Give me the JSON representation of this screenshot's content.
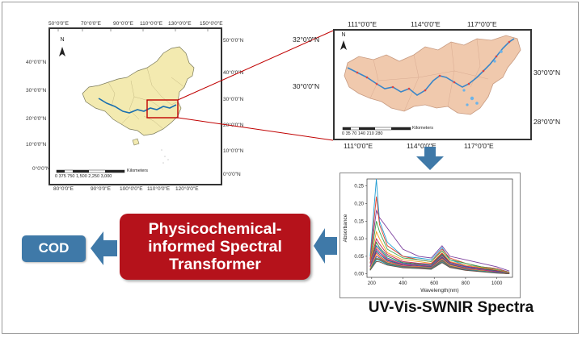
{
  "china_map": {
    "top_ticks": [
      "50°0'0\"E",
      "70°0'0\"E",
      "90°0'0\"E",
      "110°0'0\"E",
      "130°0'0\"E",
      "150°0'0\"E"
    ],
    "bottom_ticks": [
      "80°0'0\"E",
      "90°0'0\"E",
      "100°0'0\"E",
      "110°0'0\"E",
      "120°0'0\"E"
    ],
    "left_ticks": [
      "40°0'0\"N",
      "30°0'0\"N",
      "20°0'0\"N",
      "10°0'0\"N",
      "0°0'0\"N"
    ],
    "right_ticks": [
      "50°0'0\"N",
      "40°0'0\"N",
      "30°0'0\"N",
      "20°0'0\"N",
      "10°0'0\"N",
      "0°0'0\"N"
    ],
    "north": "N",
    "scale_numbers": "0  375 750     1,500    2,250    3,000",
    "scale_unit": "Kilometers"
  },
  "basin_map": {
    "top_ticks": [
      "111°0'0\"E",
      "114°0'0\"E",
      "117°0'0\"E"
    ],
    "bottom_ticks": [
      "111°0'0\"E",
      "114°0'0\"E",
      "117°0'0\"E"
    ],
    "left_ticks": [
      "32°0'0\"N",
      "30°0'0\"N"
    ],
    "right_ticks": [
      "30°0'0\"N",
      "28°0'0\"N"
    ],
    "north": "N",
    "scale_numbers": "0  35  70     140    210    280",
    "scale_unit": "Kilometers"
  },
  "model_box": {
    "line1": "Physicochemical-",
    "line2": "informed Spectral",
    "line3": "Transformer",
    "color": "#b5121b"
  },
  "output_box": {
    "label": "COD",
    "color": "#3f79a8"
  },
  "spectra_caption": "UV-Vis-SWNIR Spectra",
  "chart_data": {
    "type": "line",
    "xlabel": "Wavelength(nm)",
    "ylabel": "Absorbance",
    "xlim": [
      170,
      1100
    ],
    "ylim": [
      -0.01,
      0.27
    ],
    "xticks": [
      200,
      400,
      600,
      800,
      1000
    ],
    "yticks": [
      0.0,
      0.05,
      0.1,
      0.15,
      0.2,
      0.25
    ],
    "colors": [
      "#1f9bd1",
      "#7b3f9e",
      "#e0402a",
      "#3aa34a",
      "#f0a020",
      "#c2185b",
      "#2e7d32",
      "#1565c0",
      "#ff7043",
      "#8e24aa",
      "#00897b",
      "#d81b60",
      "#fbc02d",
      "#5e35b1",
      "#43a047",
      "#e53935",
      "#00acc1",
      "#6d4c41"
    ],
    "series": [
      {
        "x": [
          190,
          230,
          250,
          300,
          400,
          500,
          580,
          650,
          700,
          800,
          900,
          1000,
          1080
        ],
        "y": [
          0.05,
          0.27,
          0.15,
          0.09,
          0.05,
          0.045,
          0.04,
          0.075,
          0.04,
          0.025,
          0.02,
          0.015,
          0.005
        ]
      },
      {
        "x": [
          190,
          230,
          250,
          300,
          400,
          500,
          580,
          650,
          700,
          800,
          900,
          1000,
          1080
        ],
        "y": [
          0.04,
          0.18,
          0.16,
          0.13,
          0.07,
          0.05,
          0.045,
          0.08,
          0.05,
          0.04,
          0.03,
          0.02,
          0.008
        ]
      },
      {
        "x": [
          190,
          230,
          250,
          300,
          400,
          500,
          580,
          650,
          700,
          800,
          900,
          1000,
          1080
        ],
        "y": [
          0.04,
          0.22,
          0.14,
          0.08,
          0.05,
          0.04,
          0.035,
          0.07,
          0.045,
          0.03,
          0.02,
          0.015,
          0.004
        ]
      },
      {
        "x": [
          190,
          230,
          250,
          300,
          400,
          500,
          580,
          650,
          700,
          800,
          900,
          1000,
          1080
        ],
        "y": [
          0.03,
          0.15,
          0.12,
          0.07,
          0.045,
          0.04,
          0.035,
          0.065,
          0.04,
          0.03,
          0.02,
          0.012,
          0.003
        ]
      },
      {
        "x": [
          190,
          230,
          250,
          300,
          400,
          500,
          580,
          650,
          700,
          800,
          900,
          1000,
          1080
        ],
        "y": [
          0.03,
          0.12,
          0.1,
          0.06,
          0.04,
          0.035,
          0.03,
          0.06,
          0.035,
          0.025,
          0.018,
          0.01,
          0.003
        ]
      },
      {
        "x": [
          190,
          230,
          250,
          300,
          400,
          500,
          580,
          650,
          700,
          800,
          900,
          1000,
          1080
        ],
        "y": [
          0.03,
          0.1,
          0.085,
          0.055,
          0.035,
          0.03,
          0.028,
          0.058,
          0.033,
          0.022,
          0.016,
          0.009,
          0.002
        ]
      },
      {
        "x": [
          190,
          230,
          250,
          300,
          400,
          500,
          580,
          650,
          700,
          800,
          900,
          1000,
          1080
        ],
        "y": [
          0.02,
          0.09,
          0.075,
          0.05,
          0.032,
          0.028,
          0.025,
          0.055,
          0.03,
          0.02,
          0.014,
          0.008,
          0.002
        ]
      },
      {
        "x": [
          190,
          230,
          250,
          300,
          400,
          500,
          580,
          650,
          700,
          800,
          900,
          1000,
          1080
        ],
        "y": [
          0.02,
          0.08,
          0.07,
          0.045,
          0.03,
          0.026,
          0.024,
          0.052,
          0.03,
          0.02,
          0.013,
          0.007,
          0.002
        ]
      },
      {
        "x": [
          190,
          230,
          250,
          300,
          400,
          500,
          580,
          650,
          700,
          800,
          900,
          1000,
          1080
        ],
        "y": [
          0.02,
          0.075,
          0.065,
          0.042,
          0.028,
          0.025,
          0.022,
          0.05,
          0.028,
          0.018,
          0.012,
          0.006,
          0.001
        ]
      },
      {
        "x": [
          190,
          230,
          250,
          300,
          400,
          500,
          580,
          650,
          700,
          800,
          900,
          1000,
          1080
        ],
        "y": [
          0.02,
          0.07,
          0.06,
          0.04,
          0.027,
          0.024,
          0.021,
          0.048,
          0.027,
          0.017,
          0.011,
          0.006,
          0.001
        ]
      },
      {
        "x": [
          190,
          230,
          250,
          300,
          400,
          500,
          580,
          650,
          700,
          800,
          900,
          1000,
          1080
        ],
        "y": [
          0.015,
          0.065,
          0.055,
          0.038,
          0.025,
          0.022,
          0.02,
          0.046,
          0.026,
          0.016,
          0.01,
          0.005,
          0.001
        ]
      },
      {
        "x": [
          190,
          230,
          250,
          300,
          400,
          500,
          580,
          650,
          700,
          800,
          900,
          1000,
          1080
        ],
        "y": [
          0.015,
          0.06,
          0.05,
          0.035,
          0.024,
          0.021,
          0.019,
          0.044,
          0.025,
          0.015,
          0.01,
          0.005,
          0.001
        ]
      },
      {
        "x": [
          190,
          230,
          250,
          300,
          400,
          500,
          580,
          650,
          700,
          800,
          900,
          1000,
          1080
        ],
        "y": [
          0.015,
          0.055,
          0.048,
          0.033,
          0.022,
          0.02,
          0.018,
          0.042,
          0.024,
          0.014,
          0.009,
          0.004,
          0.001
        ]
      },
      {
        "x": [
          190,
          230,
          250,
          300,
          400,
          500,
          580,
          650,
          700,
          800,
          900,
          1000,
          1080
        ],
        "y": [
          0.012,
          0.05,
          0.045,
          0.031,
          0.021,
          0.019,
          0.017,
          0.04,
          0.022,
          0.013,
          0.008,
          0.004,
          0.0
        ]
      },
      {
        "x": [
          190,
          230,
          250,
          300,
          400,
          500,
          580,
          650,
          700,
          800,
          900,
          1000,
          1080
        ],
        "y": [
          0.012,
          0.045,
          0.042,
          0.03,
          0.02,
          0.018,
          0.016,
          0.038,
          0.021,
          0.012,
          0.008,
          0.003,
          0.0
        ]
      },
      {
        "x": [
          190,
          230,
          250,
          300,
          400,
          500,
          580,
          650,
          700,
          800,
          900,
          1000,
          1080
        ],
        "y": [
          0.01,
          0.042,
          0.04,
          0.028,
          0.019,
          0.017,
          0.015,
          0.036,
          0.02,
          0.012,
          0.007,
          0.003,
          0.0
        ]
      },
      {
        "x": [
          190,
          230,
          250,
          300,
          400,
          500,
          580,
          650,
          700,
          800,
          900,
          1000,
          1080
        ],
        "y": [
          0.01,
          0.04,
          0.038,
          0.027,
          0.018,
          0.016,
          0.014,
          0.034,
          0.019,
          0.011,
          0.007,
          0.003,
          0.0
        ]
      },
      {
        "x": [
          190,
          230,
          250,
          300,
          400,
          500,
          580,
          650,
          700,
          800,
          900,
          1000,
          1080
        ],
        "y": [
          0.01,
          0.035,
          0.034,
          0.025,
          0.017,
          0.015,
          0.013,
          0.032,
          0.018,
          0.01,
          0.006,
          0.002,
          0.0
        ]
      }
    ]
  }
}
